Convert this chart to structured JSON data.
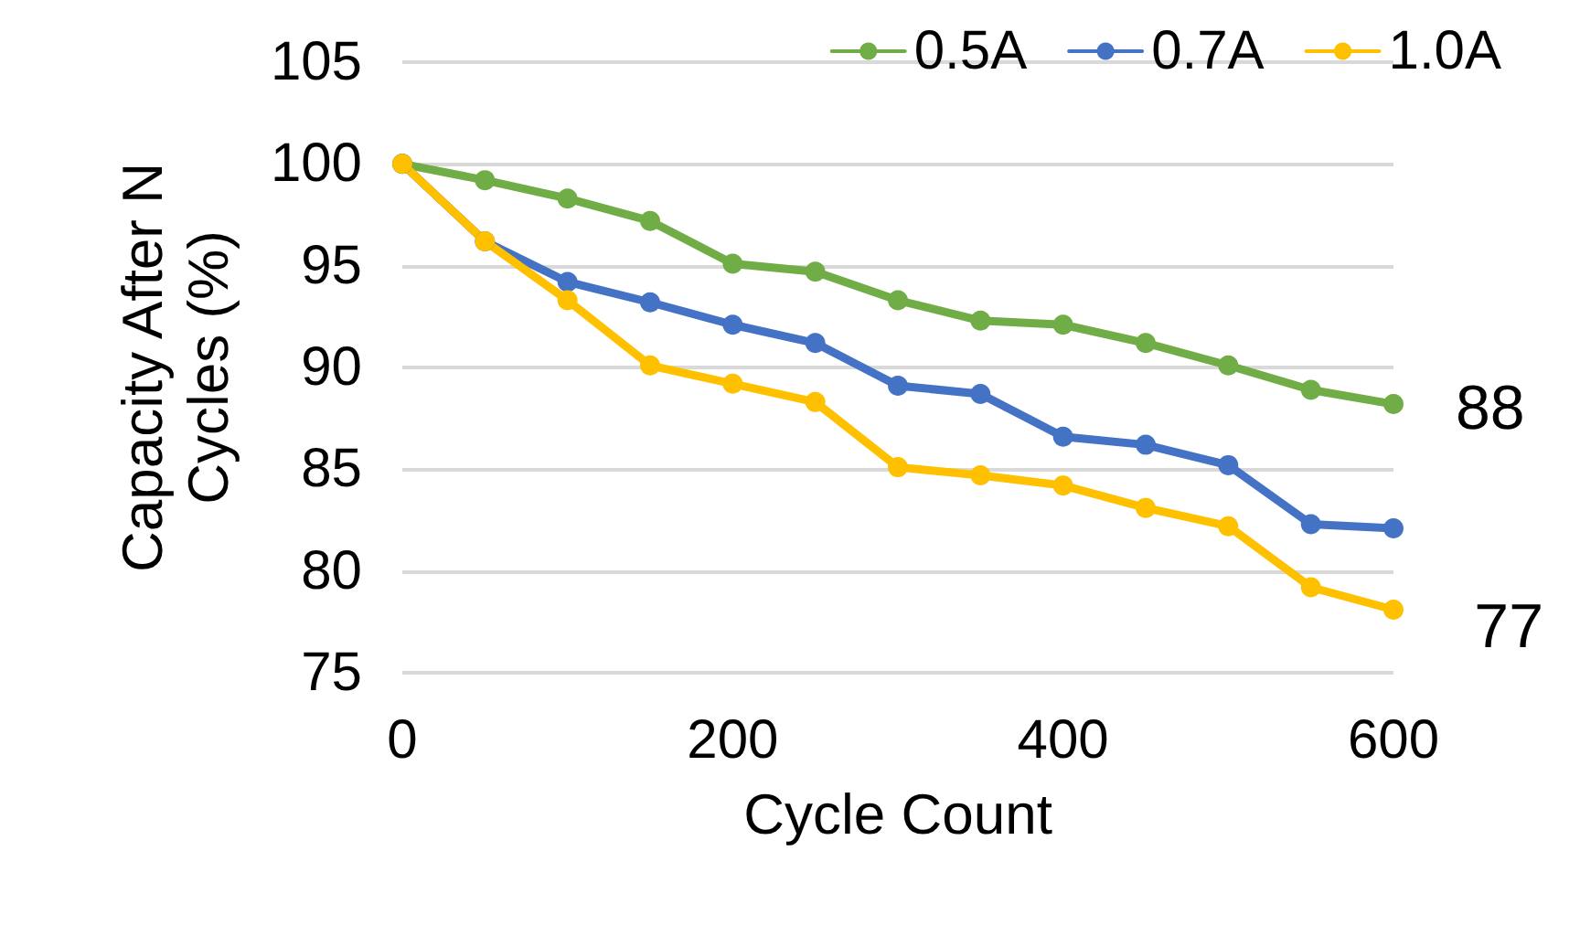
{
  "chart_data": {
    "type": "line",
    "xlabel": "Cycle Count",
    "ylabel": "Capacity After N Cycles (%)",
    "x": [
      0,
      50,
      100,
      150,
      200,
      250,
      300,
      350,
      400,
      450,
      500,
      550,
      600
    ],
    "series": [
      {
        "name": "0.5A",
        "color": "#70ad47",
        "values": [
          100,
          99.2,
          98.3,
          97.2,
          95.1,
          94.7,
          93.3,
          92.3,
          92.1,
          91.2,
          90.1,
          88.9,
          88.2
        ]
      },
      {
        "name": "0.7A",
        "color": "#4472c4",
        "values": [
          100,
          96.2,
          94.2,
          93.2,
          92.1,
          91.2,
          89.1,
          88.7,
          86.6,
          86.2,
          85.2,
          82.3,
          82.1
        ]
      },
      {
        "name": "1.0A",
        "color": "#ffc000",
        "values": [
          100,
          96.2,
          93.3,
          90.1,
          89.2,
          88.3,
          85.1,
          84.7,
          84.2,
          83.1,
          82.2,
          79.2,
          78.1
        ]
      }
    ],
    "xlim": [
      0,
      600
    ],
    "xticks": [
      0,
      200,
      400,
      600
    ],
    "ylim": [
      75,
      105
    ],
    "yticks": [
      75,
      80,
      85,
      90,
      95,
      100,
      105
    ],
    "annotations": [
      {
        "text": "88",
        "x": 600,
        "y": 88
      },
      "77"
    ],
    "grid": "y",
    "legend": "top right",
    "marker": "circle",
    "line_style": "solid"
  }
}
